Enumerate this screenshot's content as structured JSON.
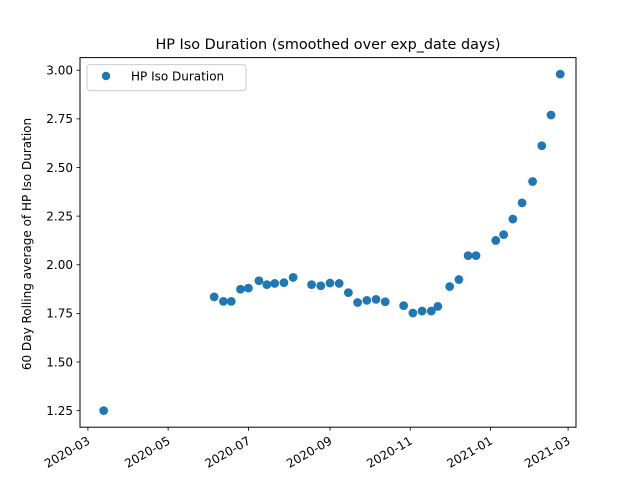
{
  "chart_data": {
    "type": "scatter",
    "title": "HP Iso Duration (smoothed over exp_date days)",
    "xlabel": "",
    "ylabel": "60 Day Rolling average of HP Iso Duration",
    "x_type": "date",
    "xlim": [
      "2020-02-24",
      "2021-03-07"
    ],
    "ylim": [
      1.165,
      3.065
    ],
    "x_ticks": [
      "2020-03-01",
      "2020-05-01",
      "2020-07-01",
      "2020-09-01",
      "2020-11-01",
      "2021-01-01",
      "2021-03-01"
    ],
    "x_tick_labels": [
      "2020-03",
      "2020-05",
      "2020-07",
      "2020-09",
      "2020-11",
      "2021-01",
      "2021-03"
    ],
    "y_ticks": [
      1.25,
      1.5,
      1.75,
      2.0,
      2.25,
      2.5,
      2.75,
      3.0
    ],
    "y_tick_labels": [
      "1.25",
      "1.50",
      "1.75",
      "2.00",
      "2.25",
      "2.50",
      "2.75",
      "3.00"
    ],
    "grid": false,
    "legend_position": "upper-left",
    "series": [
      {
        "name": "HP Iso Duration",
        "color": "#1f77b4",
        "marker": "circle",
        "points": [
          {
            "x": "2020-03-13",
            "y": 1.25
          },
          {
            "x": "2020-06-05",
            "y": 1.835
          },
          {
            "x": "2020-06-12",
            "y": 1.812
          },
          {
            "x": "2020-06-18",
            "y": 1.812
          },
          {
            "x": "2020-06-25",
            "y": 1.874
          },
          {
            "x": "2020-07-01",
            "y": 1.88
          },
          {
            "x": "2020-07-09",
            "y": 1.918
          },
          {
            "x": "2020-07-15",
            "y": 1.898
          },
          {
            "x": "2020-07-21",
            "y": 1.904
          },
          {
            "x": "2020-07-28",
            "y": 1.908
          },
          {
            "x": "2020-08-04",
            "y": 1.935
          },
          {
            "x": "2020-08-18",
            "y": 1.898
          },
          {
            "x": "2020-08-25",
            "y": 1.892
          },
          {
            "x": "2020-09-01",
            "y": 1.906
          },
          {
            "x": "2020-09-08",
            "y": 1.904
          },
          {
            "x": "2020-09-15",
            "y": 1.857
          },
          {
            "x": "2020-09-22",
            "y": 1.806
          },
          {
            "x": "2020-09-29",
            "y": 1.817
          },
          {
            "x": "2020-10-06",
            "y": 1.822
          },
          {
            "x": "2020-10-13",
            "y": 1.81
          },
          {
            "x": "2020-10-27",
            "y": 1.79
          },
          {
            "x": "2020-11-03",
            "y": 1.752
          },
          {
            "x": "2020-11-10",
            "y": 1.762
          },
          {
            "x": "2020-11-17",
            "y": 1.762
          },
          {
            "x": "2020-11-22",
            "y": 1.786
          },
          {
            "x": "2020-12-01",
            "y": 1.888
          },
          {
            "x": "2020-12-08",
            "y": 1.924
          },
          {
            "x": "2020-12-15",
            "y": 2.047
          },
          {
            "x": "2020-12-21",
            "y": 2.047
          },
          {
            "x": "2021-01-05",
            "y": 2.125
          },
          {
            "x": "2021-01-11",
            "y": 2.155
          },
          {
            "x": "2021-01-18",
            "y": 2.235
          },
          {
            "x": "2021-01-25",
            "y": 2.318
          },
          {
            "x": "2021-02-02",
            "y": 2.428
          },
          {
            "x": "2021-02-09",
            "y": 2.612
          },
          {
            "x": "2021-02-16",
            "y": 2.77
          },
          {
            "x": "2021-02-23",
            "y": 2.98
          }
        ]
      }
    ]
  }
}
